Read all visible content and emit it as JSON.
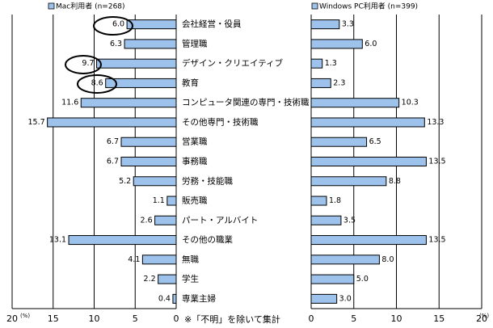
{
  "chart_data": {
    "type": "butterfly",
    "categories": [
      "会社経営・役員",
      "管理職",
      "デザイン・クリエイティブ",
      "教育",
      "コンピュータ関連の専門・技術職",
      "その他専門・技術職",
      "営業職",
      "事務職",
      "労務・技能職",
      "販売職",
      "パート・アルバイト",
      "その他の職業",
      "無職",
      "学生",
      "専業主婦"
    ],
    "series": [
      {
        "name": "Mac利用者 (n=268)",
        "color": "#9dc3ec",
        "values": [
          6.0,
          6.3,
          9.7,
          8.6,
          11.6,
          15.7,
          6.7,
          6.7,
          5.2,
          1.1,
          2.6,
          13.1,
          4.1,
          2.2,
          0.4
        ],
        "value_labels": [
          "6.0",
          "6.3",
          "9.7",
          "8.6",
          "11.6",
          "15.7",
          "6.7",
          "6.7",
          "5.2",
          "1.1",
          "2.6",
          "13.1",
          "4.1",
          "2.2",
          "0.4"
        ]
      },
      {
        "name": "Windows PC利用者 (n=399)",
        "color": "#9dc3ec",
        "values": [
          3.3,
          6.0,
          1.3,
          2.3,
          10.3,
          13.3,
          6.5,
          13.5,
          8.8,
          1.8,
          3.5,
          13.5,
          8.0,
          5.0,
          3.0
        ],
        "value_labels": [
          "3.3",
          "6.0",
          "1.3",
          "2.3",
          "10.3",
          "13.3",
          "6.5",
          "13.5",
          "8.8",
          "1.8",
          "3.5",
          "13.5",
          "8.0",
          "5.0",
          "3.0"
        ]
      }
    ],
    "xlim": [
      0,
      20
    ],
    "xticks": [
      0,
      5,
      10,
      15,
      20
    ],
    "x_unit": "(%)",
    "note": "※「不明」を除いて集計",
    "grid": true
  }
}
